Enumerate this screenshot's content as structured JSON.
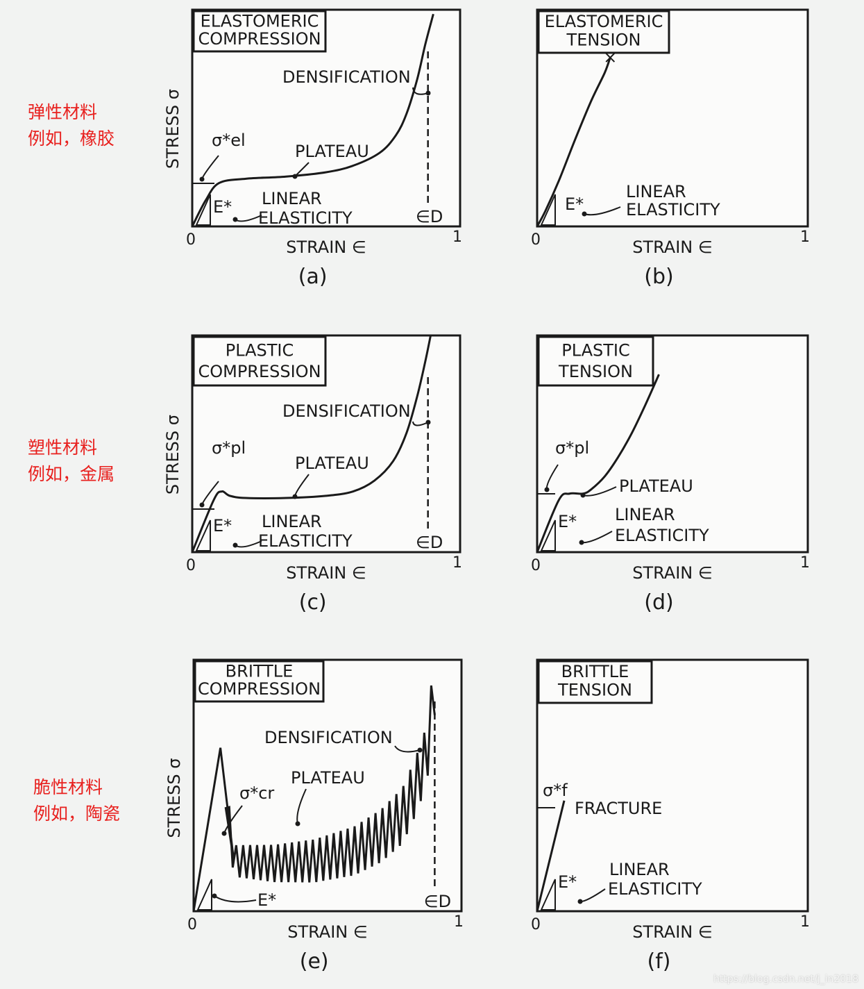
{
  "row_labels": [
    {
      "line1": "弹性材料",
      "line2": "例如，橡胶"
    },
    {
      "line1": "塑性材料",
      "line2": "例如，金属"
    },
    {
      "line1": "脆性材料",
      "line2": "例如，陶瓷"
    }
  ],
  "watermark": "https://blog.csdn.net/j_in2018",
  "chart_data": [
    {
      "id": "a",
      "type": "line",
      "title": [
        "ELASTOMERIC",
        "COMPRESSION"
      ],
      "caption": "(a)",
      "xlabel": "STRAIN ∈",
      "ylabel": "STRESS σ",
      "xlim": [
        0,
        1
      ],
      "tick_labels": [
        "0",
        "1"
      ],
      "annotations": [
        "DENSIFICATION",
        "PLATEAU",
        "LINEAR",
        "ELASTICITY",
        "E*",
        "σ*el",
        "∈D"
      ],
      "densification_strain": 0.88,
      "series": [
        {
          "x": [
            0,
            0.05,
            0.1,
            0.2,
            0.35,
            0.5,
            0.6,
            0.7,
            0.76,
            0.8,
            0.84,
            0.87,
            0.9
          ],
          "y": [
            0,
            0.12,
            0.2,
            0.22,
            0.23,
            0.25,
            0.28,
            0.34,
            0.42,
            0.52,
            0.68,
            0.84,
            0.98
          ]
        }
      ]
    },
    {
      "id": "b",
      "type": "line",
      "title": [
        "ELASTOMERIC",
        "TENSION"
      ],
      "caption": "(b)",
      "xlabel": "STRAIN ∈",
      "ylabel": "",
      "xlim": [
        0,
        1
      ],
      "tick_labels": [
        "0",
        "1"
      ],
      "annotations": [
        "LINEAR",
        "ELASTICITY",
        "E*"
      ],
      "fracture_marker": "×",
      "series": [
        {
          "x": [
            0,
            0.03,
            0.08,
            0.14,
            0.2,
            0.25,
            0.27
          ],
          "y": [
            0,
            0.07,
            0.21,
            0.4,
            0.58,
            0.71,
            0.78
          ]
        }
      ]
    },
    {
      "id": "c",
      "type": "line",
      "title": [
        "PLASTIC",
        "COMPRESSION"
      ],
      "caption": "(c)",
      "xlabel": "STRAIN ∈",
      "ylabel": "STRESS σ",
      "xlim": [
        0,
        1
      ],
      "tick_labels": [
        "0",
        "1"
      ],
      "annotations": [
        "DENSIFICATION",
        "PLATEAU",
        "LINEAR",
        "ELASTICITY",
        "E*",
        "σ*pl",
        "∈D"
      ],
      "densification_strain": 0.88,
      "series": [
        {
          "x": [
            0,
            0.08,
            0.11,
            0.14,
            0.2,
            0.35,
            0.5,
            0.6,
            0.68,
            0.75,
            0.8,
            0.84,
            0.87,
            0.89
          ],
          "y": [
            0,
            0.24,
            0.28,
            0.26,
            0.25,
            0.25,
            0.26,
            0.28,
            0.33,
            0.42,
            0.55,
            0.72,
            0.88,
            1.0
          ]
        }
      ]
    },
    {
      "id": "d",
      "type": "line",
      "title": [
        "PLASTIC",
        "TENSION"
      ],
      "caption": "(d)",
      "xlabel": "STRAIN ∈",
      "ylabel": "",
      "xlim": [
        0,
        1
      ],
      "tick_labels": [
        "0",
        "1"
      ],
      "annotations": [
        "PLATEAU",
        "LINEAR",
        "ELASTICITY",
        "E*",
        "σ*pl"
      ],
      "series": [
        {
          "x": [
            0,
            0.08,
            0.12,
            0.17,
            0.2,
            0.25,
            0.3,
            0.35,
            0.4,
            0.45
          ],
          "y": [
            0,
            0.24,
            0.27,
            0.27,
            0.29,
            0.35,
            0.44,
            0.55,
            0.68,
            0.82
          ]
        }
      ]
    },
    {
      "id": "e",
      "type": "line",
      "title": [
        "BRITTLE",
        "COMPRESSION"
      ],
      "caption": "(e)",
      "xlabel": "STRAIN ∈",
      "ylabel": "STRESS σ",
      "xlim": [
        0,
        1
      ],
      "tick_labels": [
        "0",
        "1"
      ],
      "annotations": [
        "DENSIFICATION",
        "PLATEAU",
        "E*",
        "σ*cr",
        "∈D"
      ],
      "densification_strain": 0.9,
      "series": [
        {
          "x": [
            0,
            0.1,
            0.15,
            0.3,
            0.45,
            0.6,
            0.7,
            0.78,
            0.83,
            0.87,
            0.9
          ],
          "y": [
            0,
            0.65,
            0.2,
            0.19,
            0.2,
            0.24,
            0.3,
            0.38,
            0.5,
            0.62,
            0.9
          ]
        }
      ]
    },
    {
      "id": "f",
      "type": "line",
      "title": [
        "BRITTLE",
        "TENSION"
      ],
      "caption": "(f)",
      "xlabel": "STRAIN ∈",
      "ylabel": "",
      "xlim": [
        0,
        1
      ],
      "tick_labels": [
        "0",
        "1"
      ],
      "annotations": [
        "FRACTURE",
        "LINEAR",
        "ELASTICITY",
        "E*",
        "σ*f"
      ],
      "series": [
        {
          "x": [
            0,
            0.1
          ],
          "y": [
            0,
            0.44
          ]
        }
      ]
    }
  ]
}
